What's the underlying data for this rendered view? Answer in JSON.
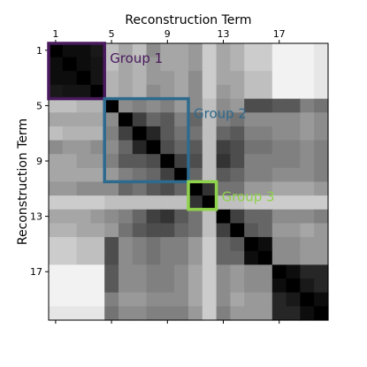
{
  "chart_data": {
    "type": "heatmap",
    "xlabel": "Reconstruction Term",
    "ylabel": "Reconstruction Term",
    "x_axis_position": "top",
    "size": 20,
    "x_ticks": [
      1,
      5,
      9,
      13,
      17
    ],
    "y_ticks": [
      1,
      5,
      9,
      13,
      17
    ],
    "colormap": "greys (black = high, white = low)",
    "range": [
      0,
      1
    ],
    "matrix": [
      [
        1.0,
        0.95,
        0.95,
        0.9,
        0.25,
        0.35,
        0.25,
        0.45,
        0.35,
        0.35,
        0.4,
        0.2,
        0.35,
        0.3,
        0.2,
        0.2,
        0.05,
        0.05,
        0.05,
        0.1
      ],
      [
        0.95,
        1.0,
        0.95,
        0.92,
        0.25,
        0.35,
        0.3,
        0.4,
        0.35,
        0.35,
        0.4,
        0.2,
        0.35,
        0.3,
        0.2,
        0.2,
        0.05,
        0.05,
        0.05,
        0.1
      ],
      [
        0.95,
        0.95,
        1.0,
        0.92,
        0.3,
        0.35,
        0.3,
        0.4,
        0.4,
        0.35,
        0.45,
        0.2,
        0.35,
        0.35,
        0.25,
        0.25,
        0.05,
        0.05,
        0.05,
        0.1
      ],
      [
        0.9,
        0.92,
        0.92,
        1.0,
        0.3,
        0.35,
        0.3,
        0.45,
        0.4,
        0.35,
        0.45,
        0.2,
        0.4,
        0.35,
        0.25,
        0.25,
        0.05,
        0.05,
        0.05,
        0.1
      ],
      [
        0.25,
        0.25,
        0.3,
        0.3,
        1.0,
        0.45,
        0.5,
        0.45,
        0.5,
        0.4,
        0.45,
        0.25,
        0.45,
        0.4,
        0.7,
        0.7,
        0.65,
        0.65,
        0.5,
        0.55
      ],
      [
        0.35,
        0.35,
        0.35,
        0.35,
        0.45,
        1.0,
        0.75,
        0.6,
        0.65,
        0.5,
        0.6,
        0.25,
        0.5,
        0.55,
        0.45,
        0.45,
        0.45,
        0.45,
        0.4,
        0.45
      ],
      [
        0.25,
        0.3,
        0.3,
        0.3,
        0.5,
        0.75,
        1.0,
        0.85,
        0.65,
        0.55,
        0.55,
        0.25,
        0.6,
        0.65,
        0.5,
        0.5,
        0.45,
        0.45,
        0.4,
        0.45
      ],
      [
        0.45,
        0.4,
        0.4,
        0.45,
        0.45,
        0.6,
        0.85,
        1.0,
        0.7,
        0.6,
        0.65,
        0.25,
        0.75,
        0.7,
        0.55,
        0.55,
        0.5,
        0.5,
        0.45,
        0.5
      ],
      [
        0.35,
        0.35,
        0.4,
        0.4,
        0.5,
        0.65,
        0.65,
        0.7,
        1.0,
        0.75,
        0.7,
        0.25,
        0.8,
        0.7,
        0.5,
        0.5,
        0.5,
        0.5,
        0.45,
        0.5
      ],
      [
        0.35,
        0.35,
        0.35,
        0.35,
        0.4,
        0.5,
        0.55,
        0.6,
        0.75,
        1.0,
        0.6,
        0.25,
        0.65,
        0.6,
        0.5,
        0.5,
        0.45,
        0.45,
        0.45,
        0.5
      ],
      [
        0.4,
        0.4,
        0.45,
        0.45,
        0.45,
        0.6,
        0.55,
        0.65,
        0.7,
        0.6,
        1.0,
        0.8,
        0.55,
        0.55,
        0.4,
        0.4,
        0.35,
        0.35,
        0.35,
        0.4
      ],
      [
        0.2,
        0.2,
        0.2,
        0.2,
        0.25,
        0.25,
        0.25,
        0.25,
        0.25,
        0.25,
        0.8,
        1.0,
        0.25,
        0.25,
        0.2,
        0.2,
        0.2,
        0.2,
        0.2,
        0.2
      ],
      [
        0.35,
        0.35,
        0.35,
        0.4,
        0.45,
        0.5,
        0.6,
        0.75,
        0.8,
        0.65,
        0.55,
        0.25,
        1.0,
        0.75,
        0.6,
        0.6,
        0.45,
        0.45,
        0.45,
        0.5
      ],
      [
        0.3,
        0.3,
        0.35,
        0.35,
        0.4,
        0.55,
        0.65,
        0.7,
        0.7,
        0.6,
        0.55,
        0.25,
        0.75,
        1.0,
        0.65,
        0.6,
        0.4,
        0.4,
        0.35,
        0.4
      ],
      [
        0.2,
        0.2,
        0.25,
        0.25,
        0.7,
        0.45,
        0.5,
        0.55,
        0.5,
        0.5,
        0.4,
        0.2,
        0.6,
        0.65,
        1.0,
        0.95,
        0.45,
        0.45,
        0.4,
        0.4
      ],
      [
        0.2,
        0.2,
        0.25,
        0.25,
        0.7,
        0.45,
        0.5,
        0.55,
        0.5,
        0.5,
        0.4,
        0.2,
        0.6,
        0.6,
        0.95,
        1.0,
        0.45,
        0.45,
        0.4,
        0.4
      ],
      [
        0.05,
        0.05,
        0.05,
        0.05,
        0.65,
        0.45,
        0.45,
        0.5,
        0.5,
        0.45,
        0.35,
        0.2,
        0.45,
        0.4,
        0.45,
        0.45,
        1.0,
        0.95,
        0.85,
        0.85
      ],
      [
        0.05,
        0.05,
        0.05,
        0.05,
        0.65,
        0.45,
        0.45,
        0.5,
        0.5,
        0.45,
        0.35,
        0.2,
        0.45,
        0.4,
        0.45,
        0.45,
        0.95,
        1.0,
        0.9,
        0.85
      ],
      [
        0.05,
        0.05,
        0.05,
        0.05,
        0.5,
        0.4,
        0.4,
        0.45,
        0.45,
        0.45,
        0.35,
        0.2,
        0.45,
        0.35,
        0.4,
        0.4,
        0.85,
        0.9,
        1.0,
        0.95
      ],
      [
        0.1,
        0.1,
        0.1,
        0.1,
        0.55,
        0.45,
        0.45,
        0.5,
        0.5,
        0.5,
        0.4,
        0.2,
        0.5,
        0.4,
        0.4,
        0.4,
        0.85,
        0.85,
        0.95,
        1.0
      ]
    ],
    "groups": [
      {
        "label": "Group 1",
        "from": 1,
        "to": 4,
        "color": "#4a1a5e"
      },
      {
        "label": "Group 2",
        "from": 5,
        "to": 10,
        "color": "#2e6a8e"
      },
      {
        "label": "Group 3",
        "from": 11,
        "to": 12,
        "color": "#8ed14a"
      }
    ]
  }
}
